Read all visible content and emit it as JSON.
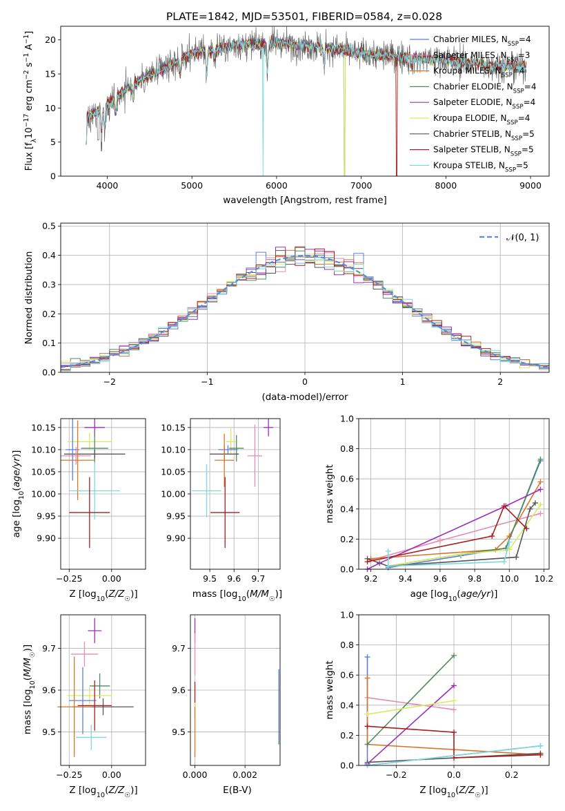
{
  "title": "PLATE=1842, MJD=53501, FIBERID=0584, z=0.028",
  "colors": {
    "ChM": "#5b7fd8",
    "SaM": "#e88ab5",
    "KrM": "#d9752a",
    "ChE": "#4e8a5c",
    "SaE": "#9b2db5",
    "KrE": "#d8ea62",
    "ChS": "#555555",
    "SaS": "#aa1c1c",
    "KrS": "#7dd8dc"
  },
  "chart_data": [
    {
      "panel": "spectrum",
      "type": "line",
      "xlabel": "wavelength [Angstrom, rest frame]",
      "ylabel": "Flux [f$_\\lambda$$10^{-17}$ erg cm$^{-2}$ s$^{-1}$ A$^{-1}$]",
      "xlim": [
        3450,
        9220
      ],
      "ylim": [
        0,
        22
      ],
      "xticks": [
        "4000",
        "5000",
        "6000",
        "7000",
        "8000",
        "9000"
      ],
      "yticks": [
        "0",
        "5",
        "10",
        "15",
        "20"
      ],
      "grid": false,
      "legend_position": "top-right",
      "continuum_anchors": [
        [
          3750,
          8.5
        ],
        [
          4000,
          10.5
        ],
        [
          4300,
          13.5
        ],
        [
          4700,
          16
        ],
        [
          5000,
          18
        ],
        [
          5500,
          19.2
        ],
        [
          6000,
          19.5
        ],
        [
          6500,
          19
        ],
        [
          7000,
          18
        ],
        [
          7500,
          17.5
        ],
        [
          8000,
          17
        ],
        [
          8500,
          16.3
        ],
        [
          8950,
          16
        ]
      ],
      "absorption_features": [
        [
          3934,
          3.5
        ],
        [
          3968,
          3.5
        ],
        [
          4101,
          2
        ],
        [
          4305,
          2
        ],
        [
          4861,
          2
        ],
        [
          5175,
          3.5
        ],
        [
          5270,
          1.5
        ],
        [
          5890,
          4
        ],
        [
          6563,
          2.5
        ],
        [
          7600,
          1.5
        ]
      ],
      "series": [
        {
          "key": "ChM",
          "label_base": "Chabrier MILES, N",
          "label_sub": "SSP",
          "label_tail": "=4",
          "gaps": []
        },
        {
          "key": "SaM",
          "label_base": "Salpeter MILES, N",
          "label_sub": "SSP",
          "label_tail": "=3",
          "gaps": []
        },
        {
          "key": "KrM",
          "label_base": "Kroupa MILES, N",
          "label_sub": "SSP",
          "label_tail": "=4",
          "gaps": [
            7420
          ]
        },
        {
          "key": "ChE",
          "label_base": "Chabrier ELODIE, N",
          "label_sub": "SSP",
          "label_tail": "=4",
          "gaps": [
            6805
          ]
        },
        {
          "key": "SaE",
          "label_base": "Salpeter ELODIE, N",
          "label_sub": "SSP",
          "label_tail": "=4",
          "gaps": []
        },
        {
          "key": "KrE",
          "label_base": "Kroupa ELODIE, N",
          "label_sub": "SSP",
          "label_tail": "=4",
          "gaps": [
            6805
          ]
        },
        {
          "key": "ChS",
          "label_base": "Chabrier STELIB, N",
          "label_sub": "SSP",
          "label_tail": "=5",
          "gaps": [],
          "data": true
        },
        {
          "key": "SaS",
          "label_base": "Salpeter STELIB, N",
          "label_sub": "SSP",
          "label_tail": "=5",
          "gaps": [
            7420
          ]
        },
        {
          "key": "KrS",
          "label_base": "Kroupa STELIB, N",
          "label_sub": "SSP",
          "label_tail": "=5",
          "gaps": [
            5840
          ]
        }
      ]
    },
    {
      "panel": "residuals",
      "type": "histogram",
      "xlabel": "(data-model)/error",
      "ylabel": "Normed distribution",
      "xlim": [
        -2.5,
        2.5
      ],
      "ylim": [
        0,
        0.51
      ],
      "xticks": [
        "−2",
        "−1",
        "0",
        "1",
        "2"
      ],
      "yticks": [
        "0.0",
        "0.1",
        "0.2",
        "0.3",
        "0.4",
        "0.5"
      ],
      "grid": true,
      "legend_label": "$\\mathcal{N}(0,1)$",
      "legend_position": "top-right",
      "bin_width": 0.1
    },
    {
      "panel": "Z-age",
      "type": "errorbar",
      "xlabel": "Z [log$_{10}$(Z/Z$_\\odot$)]",
      "ylabel": "age  [log$_{10}$(age/yr)]",
      "xlim": [
        -0.3,
        0.2
      ],
      "ylim": [
        9.83,
        10.17
      ],
      "xticks": [
        "−0.25",
        "0.00"
      ],
      "yticks": [
        "9.90",
        "9.95",
        "10.00",
        "10.05",
        "10.10",
        "10.15"
      ],
      "points": [
        {
          "key": "SaE",
          "x": -0.1,
          "y": 10.15,
          "xe": 0.06,
          "ye": 0.02
        },
        {
          "key": "KrE",
          "x": -0.13,
          "y": 10.118,
          "xe": 0.13,
          "ye": 0.02
        },
        {
          "key": "ChE",
          "x": -0.1,
          "y": 10.103,
          "xe": 0.08,
          "ye": 0.035
        },
        {
          "key": "ChS",
          "x": -0.1,
          "y": 10.09,
          "xe": 0.18,
          "ye": 0.01
        },
        {
          "key": "SaM",
          "x": -0.21,
          "y": 10.086,
          "xe": 0.09,
          "ye": 0.02
        },
        {
          "key": "ChM",
          "x": -0.23,
          "y": 10.1,
          "xe": 0.04,
          "ye": 0.07
        },
        {
          "key": "KrM",
          "x": -0.2,
          "y": 10.076,
          "xe": 0.1,
          "ye": 0.09
        },
        {
          "key": "KrS",
          "x": -0.1,
          "y": 10.007,
          "xe": 0.15,
          "ye": 0.065
        },
        {
          "key": "SaS",
          "x": -0.13,
          "y": 9.958,
          "xe": 0.12,
          "ye": 0.08
        }
      ]
    },
    {
      "panel": "mass-age",
      "type": "errorbar",
      "xlabel": "mass [log$_{10}$(M/M$_\\odot$)]",
      "ylabel": "",
      "xlim": [
        9.42,
        9.79
      ],
      "ylim": [
        9.83,
        10.17
      ],
      "xticks": [
        "9.5",
        "9.6",
        "9.7"
      ],
      "yticks": [
        "9.90",
        "9.95",
        "10.00",
        "10.05",
        "10.10",
        "10.15"
      ],
      "points": [
        {
          "key": "SaE",
          "x": 9.742,
          "y": 10.15,
          "xe": 0.02,
          "ye": 0.02
        },
        {
          "key": "KrE",
          "x": 9.587,
          "y": 10.118,
          "xe": 0.02,
          "ye": 0.03
        },
        {
          "key": "ChE",
          "x": 9.61,
          "y": 10.103,
          "xe": 0.03,
          "ye": 0.03
        },
        {
          "key": "ChS",
          "x": 9.56,
          "y": 10.09,
          "xe": 0.06,
          "ye": 0.02
        },
        {
          "key": "SaM",
          "x": 9.686,
          "y": 10.086,
          "xe": 0.03,
          "ye": 0.07
        },
        {
          "key": "ChM",
          "x": 9.575,
          "y": 10.1,
          "xe": 0.04,
          "ye": 0.01
        },
        {
          "key": "KrM",
          "x": 9.56,
          "y": 10.076,
          "xe": 0.04,
          "ye": 0.06
        },
        {
          "key": "KrS",
          "x": 9.487,
          "y": 10.007,
          "xe": 0.06,
          "ye": 0.06
        },
        {
          "key": "SaS",
          "x": 9.563,
          "y": 9.958,
          "xe": 0.06,
          "ye": 0.08
        }
      ]
    },
    {
      "panel": "age-weight",
      "type": "line",
      "xlabel": "age  [log$_{10}$(age/yr)]",
      "ylabel": "mass weight",
      "xlim": [
        9.13,
        10.23
      ],
      "ylim": [
        0,
        1
      ],
      "xticks": [
        "9.2",
        "9.4",
        "9.6",
        "9.8",
        "10.0",
        "10.2"
      ],
      "yticks": [
        "0.0",
        "0.2",
        "0.4",
        "0.6",
        "0.8",
        "1.0"
      ],
      "series": [
        {
          "key": "ChM",
          "x": [
            9.3,
            9.72,
            9.98,
            10.18
          ],
          "y": [
            0.01,
            0.09,
            0.14,
            0.72
          ]
        },
        {
          "key": "SaM",
          "x": [
            9.2,
            9.6,
            10.18
          ],
          "y": [
            0.06,
            0.19,
            0.37
          ]
        },
        {
          "key": "KrM",
          "x": [
            9.2,
            9.92,
            10.0,
            10.18
          ],
          "y": [
            0.07,
            0.13,
            0.22,
            0.58
          ]
        },
        {
          "key": "ChE",
          "x": [
            9.3,
            9.72,
            9.98,
            10.18
          ],
          "y": [
            0.02,
            0.1,
            0.14,
            0.73
          ]
        },
        {
          "key": "SaE",
          "x": [
            9.18,
            9.25,
            9.98,
            10.18
          ],
          "y": [
            0.0,
            0.04,
            0.42,
            0.53
          ]
        },
        {
          "key": "KrE",
          "x": [
            9.3,
            9.72,
            10.0,
            10.18
          ],
          "y": [
            0.02,
            0.1,
            0.13,
            0.43
          ]
        },
        {
          "key": "ChS",
          "x": [
            9.18,
            9.3,
            10.04,
            10.12,
            10.15
          ],
          "y": [
            0.07,
            0.02,
            0.08,
            0.4,
            0.44
          ]
        },
        {
          "key": "SaS",
          "x": [
            9.18,
            9.9,
            9.97,
            10.1
          ],
          "y": [
            0.05,
            0.22,
            0.42,
            0.27
          ]
        },
        {
          "key": "KrS",
          "x": [
            9.3,
            9.3,
            9.97,
            10.0
          ],
          "y": [
            0.12,
            0.02,
            0.05,
            0.18
          ]
        }
      ]
    },
    {
      "panel": "Z-mass",
      "type": "errorbar",
      "xlabel": "Z [log$_{10}$(Z/Z$_\\odot$)]",
      "ylabel": "mass [log$_{10}$(M/M$_\\odot$)]",
      "xlim": [
        -0.3,
        0.2
      ],
      "ylim": [
        9.42,
        9.78
      ],
      "xticks": [
        "−0.25",
        "0.00"
      ],
      "yticks": [
        "9.5",
        "9.6",
        "9.7"
      ],
      "points": [
        {
          "key": "SaE",
          "x": -0.1,
          "y": 9.742,
          "xe": 0.04,
          "ye": 0.03
        },
        {
          "key": "SaM",
          "x": -0.16,
          "y": 9.686,
          "xe": 0.08,
          "ye": 0.03
        },
        {
          "key": "ChE",
          "x": -0.07,
          "y": 9.61,
          "xe": 0.06,
          "ye": 0.03
        },
        {
          "key": "KrE",
          "x": -0.13,
          "y": 9.587,
          "xe": 0.13,
          "ye": 0.02
        },
        {
          "key": "ChM",
          "x": -0.17,
          "y": 9.575,
          "xe": 0.08,
          "ye": 0.08
        },
        {
          "key": "ChS",
          "x": -0.05,
          "y": 9.56,
          "xe": 0.18,
          "ye": 0.02
        },
        {
          "key": "SaS",
          "x": -0.1,
          "y": 9.563,
          "xe": 0.1,
          "ye": 0.06
        },
        {
          "key": "KrM",
          "x": -0.22,
          "y": 9.56,
          "xe": 0.1,
          "ye": 0.12
        },
        {
          "key": "KrS",
          "x": -0.12,
          "y": 9.487,
          "xe": 0.09,
          "ye": 0.03
        }
      ]
    },
    {
      "panel": "ebv-mass",
      "type": "errorbar",
      "xlabel": "E(B-V)",
      "ylabel": "",
      "xlim": [
        -0.00018,
        0.0034
      ],
      "ylim": [
        9.42,
        9.78
      ],
      "xticks": [
        "0.000",
        "0.002"
      ],
      "yticks": [
        "9.5",
        "9.6",
        "9.7"
      ],
      "points": [
        {
          "key": "SaE",
          "x": 0.0,
          "y": 9.742,
          "xe": 0.0,
          "ye": 0.03
        },
        {
          "key": "SaM",
          "x": 0.0,
          "y": 9.686,
          "xe": 0.0,
          "ye": 0.05
        },
        {
          "key": "SaS",
          "x": 0.0,
          "y": 9.59,
          "xe": 0.0,
          "ye": 0.03
        },
        {
          "key": "KrE",
          "x": 0.0,
          "y": 9.55,
          "xe": 0.0,
          "ye": 0.02
        },
        {
          "key": "KrM",
          "x": 0.0,
          "y": 9.5,
          "xe": 0.0,
          "ye": 0.06
        },
        {
          "key": "ChM",
          "x": 0.00335,
          "y": 9.56,
          "xe": 0.0,
          "ye": 0.09
        }
      ]
    },
    {
      "panel": "Z-weight",
      "type": "line",
      "xlabel": "Z [log$_{10}$(Z/Z$_\\odot$)]",
      "ylabel": "mass weight",
      "xlim": [
        -0.33,
        0.33
      ],
      "ylim": [
        0,
        1
      ],
      "xticks": [
        "−0.2",
        "0.0",
        "0.2"
      ],
      "yticks": [
        "0.0",
        "0.2",
        "0.4",
        "0.6",
        "0.8",
        "1.0"
      ],
      "series": [
        {
          "key": "ChM",
          "x": [
            -0.3,
            -0.3,
            0.3
          ],
          "y": [
            0.72,
            0.0,
            0.13
          ]
        },
        {
          "key": "SaM",
          "x": [
            -0.3,
            0.0
          ],
          "y": [
            0.45,
            0.37
          ]
        },
        {
          "key": "KrM",
          "x": [
            -0.3,
            -0.3,
            0.3
          ],
          "y": [
            0.58,
            0.14,
            0.07
          ]
        },
        {
          "key": "ChE",
          "x": [
            -0.3,
            0.0
          ],
          "y": [
            0.14,
            0.73
          ]
        },
        {
          "key": "SaE",
          "x": [
            -0.3,
            0.0
          ],
          "y": [
            0.01,
            0.53
          ]
        },
        {
          "key": "KrE",
          "x": [
            -0.3,
            0.0
          ],
          "y": [
            0.34,
            0.43
          ]
        },
        {
          "key": "ChS",
          "x": [
            -0.3,
            0.3
          ],
          "y": [
            0.02,
            0.08
          ]
        },
        {
          "key": "SaS",
          "x": [
            -0.3,
            0.0,
            0.0,
            0.3
          ],
          "y": [
            0.26,
            0.22,
            0.05,
            0.07
          ]
        },
        {
          "key": "KrS",
          "x": [
            -0.3,
            0.3
          ],
          "y": [
            0.0,
            0.13
          ]
        }
      ]
    }
  ]
}
